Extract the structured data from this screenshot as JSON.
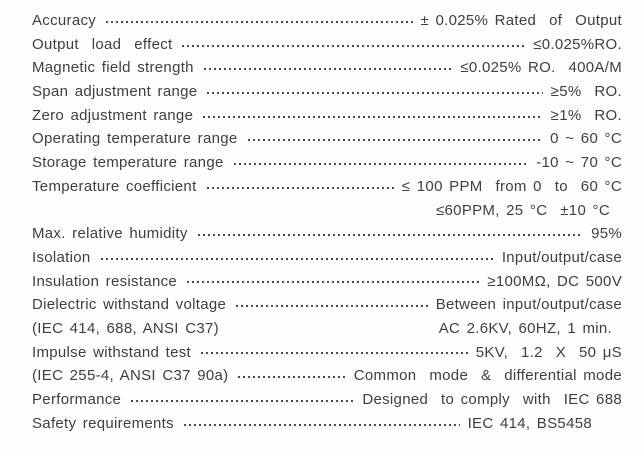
{
  "rows": [
    {
      "label": "Accuracy",
      "value": "± 0.025% Rated  of  Output",
      "leader": true,
      "value_pad": 0
    },
    {
      "label": "Output  load  effect",
      "value": "≤0.025%RO.",
      "leader": true,
      "value_pad": 0
    },
    {
      "label": "Magnetic field strength",
      "value": "≤0.025% RO.  400A/M",
      "leader": true,
      "value_pad": 0
    },
    {
      "label": "Span adjustment range",
      "value": "≥5%  RO.",
      "leader": true,
      "value_pad": 0
    },
    {
      "label": "Zero adjustment range",
      "value": "≥1%  RO.",
      "leader": true,
      "value_pad": 0
    },
    {
      "label": "Operating temperature range",
      "value": "0 ~ 60 °C",
      "leader": true,
      "value_pad": 0
    },
    {
      "label": "Storage temperature range",
      "value": "-10 ~ 70 °C",
      "leader": true,
      "value_pad": 0
    },
    {
      "label": "Temperature coefficient",
      "value": "≤ 100 PPM  from 0  to  60 °C",
      "leader": true,
      "value_pad": 0
    },
    {
      "label": "",
      "value": "≤60PPM, 25 °C  ±10 °C",
      "leader": false,
      "value_pad": 12
    },
    {
      "label": "Max. relative humidity",
      "value": "95%",
      "leader": true,
      "value_pad": 0
    },
    {
      "label": "Isolation",
      "value": "Input/output/case",
      "leader": true,
      "value_pad": 0
    },
    {
      "label": "Insulation resistance",
      "value": "≥100MΩ, DC 500V",
      "leader": true,
      "value_pad": 0
    },
    {
      "label": "Dielectric withstand voltage",
      "value": "Between input/output/case",
      "leader": true,
      "value_pad": 0
    },
    {
      "label": "(IEC 414, 688, ANSI C37)",
      "value": "AC 2.6KV, 60HZ, 1 min.",
      "leader": false,
      "value_pad": 10
    },
    {
      "label": "Impulse withstand test",
      "value": "5KV,  1.2  X  50 μS",
      "leader": true,
      "value_pad": 0
    },
    {
      "label": "(IEC 255-4, ANSI C37 90a)",
      "value": "Common  mode  &  differential mode",
      "leader": true,
      "value_pad": 0
    },
    {
      "label": "Performance",
      "value": "Designed  to comply  with  IEC 688",
      "leader": true,
      "value_pad": 0
    },
    {
      "label": "Safety requirements",
      "value": "IEC 414, BS5458",
      "leader": true,
      "value_pad": 30
    }
  ]
}
